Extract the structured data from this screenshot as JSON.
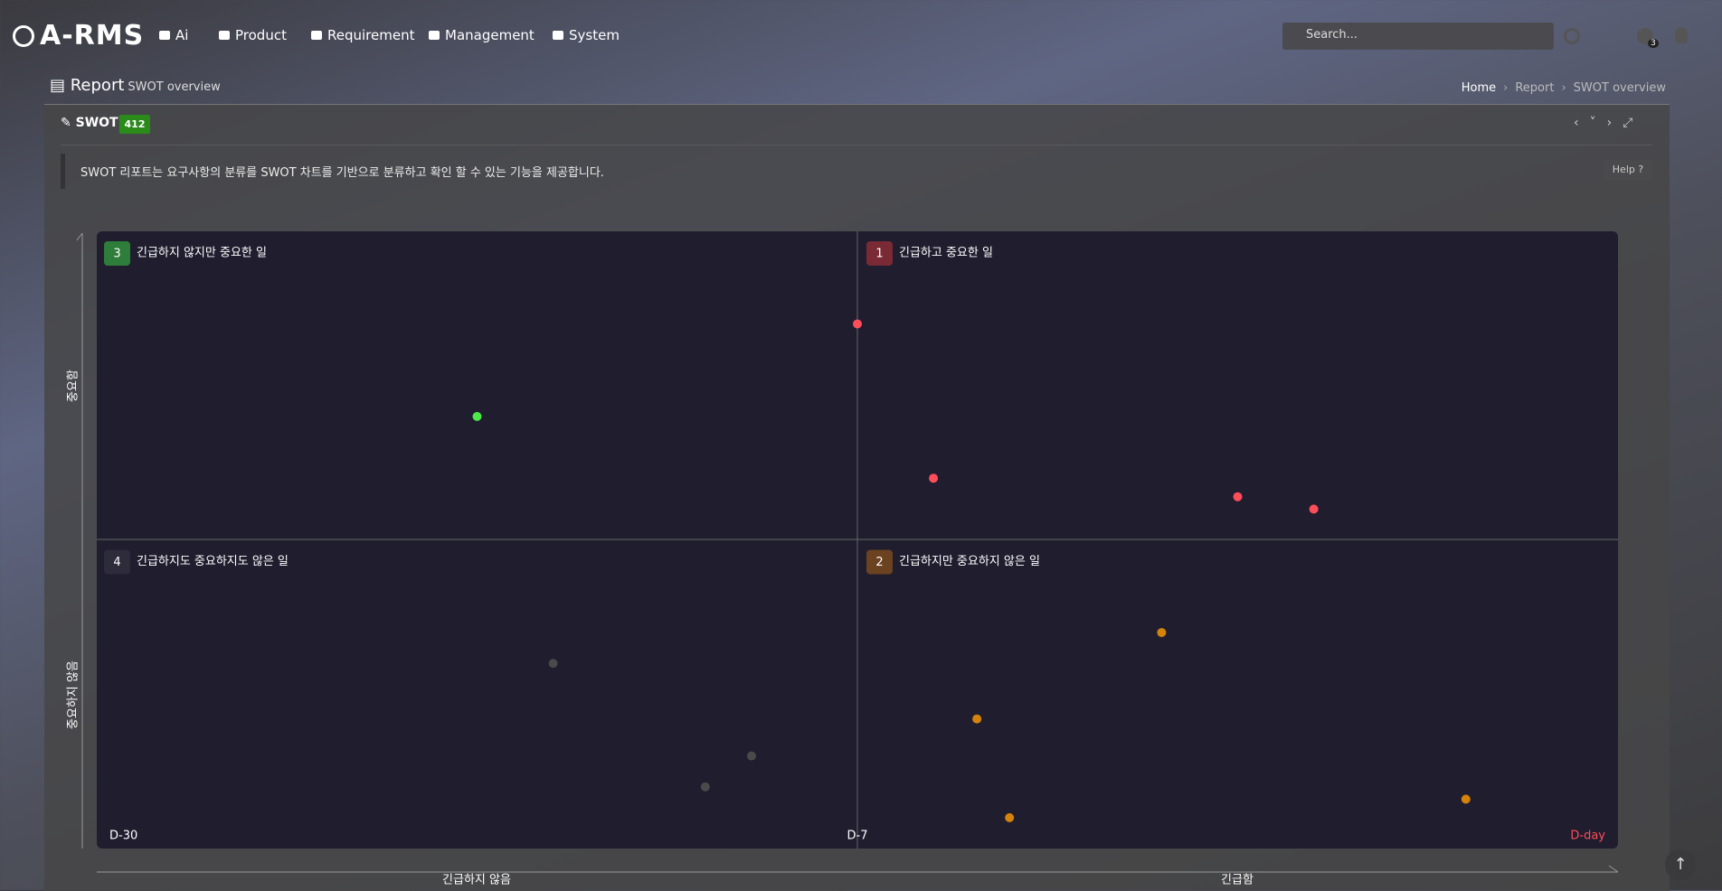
{
  "nav": {
    "brand": "A-RMS",
    "menu": [
      "Ai",
      "Product",
      "Requirement",
      "Management",
      "System"
    ],
    "search_placeholder": "Search...",
    "notification_count": 3
  },
  "header": {
    "title": "Report",
    "subtitle": "SWOT overview",
    "breadcrumb": [
      "Home",
      "Report",
      "SWOT overview"
    ]
  },
  "panel": {
    "title": "SWOT",
    "badge": 412,
    "description": "SWOT 리포트는 요구사항의 분류를 SWOT 차트를 기반으로 분류하고 확인 할 수 있는 기능을 제공합니다.",
    "help": "Help"
  },
  "chart_data": {
    "type": "scatter",
    "quadrants": [
      {
        "number": 3,
        "label": "긴급하지 않지만 중요한 일",
        "color": "#2e7d3a"
      },
      {
        "number": 1,
        "label": "긴급하고 중요한 일",
        "color": "#7a2a35"
      },
      {
        "number": 4,
        "label": "긴급하지도 중요하지도 않은 일",
        "color": "#2e2c3a"
      },
      {
        "number": 2,
        "label": "긴급하지만 중요하지 않은 일",
        "color": "#6b4320"
      }
    ],
    "xlabels": [
      "긴급하지 않음",
      "긴급함"
    ],
    "ylabels": [
      "중요함",
      "중요하지 않음"
    ],
    "xlim": [
      -30,
      0
    ],
    "xticks": [
      {
        "value": -30,
        "label": "D-30"
      },
      {
        "value": -7,
        "label": "D-7"
      },
      {
        "value": 0,
        "label": "D-day"
      }
    ],
    "xtick_colors": [
      "#ffffff",
      "#ffffff",
      "#ff4d5a"
    ],
    "ylim": [
      0,
      100
    ],
    "series": [
      {
        "color": "#ff4d5a",
        "x": [
          -7,
          -6.3,
          -3.5,
          -2.8
        ],
        "values": [
          85,
          60,
          57,
          55
        ]
      },
      {
        "color": "#4ee84a",
        "x": [
          -18.5
        ],
        "values": [
          70
        ]
      },
      {
        "color": "#4a4a4a",
        "x": [
          -16.2,
          -10.2,
          -11.6
        ],
        "values": [
          30,
          15,
          10
        ]
      },
      {
        "color": "#d4820a",
        "x": [
          -4.2,
          -5.9,
          -5.6,
          -1.4
        ],
        "values": [
          35,
          21,
          5,
          8
        ]
      }
    ]
  }
}
